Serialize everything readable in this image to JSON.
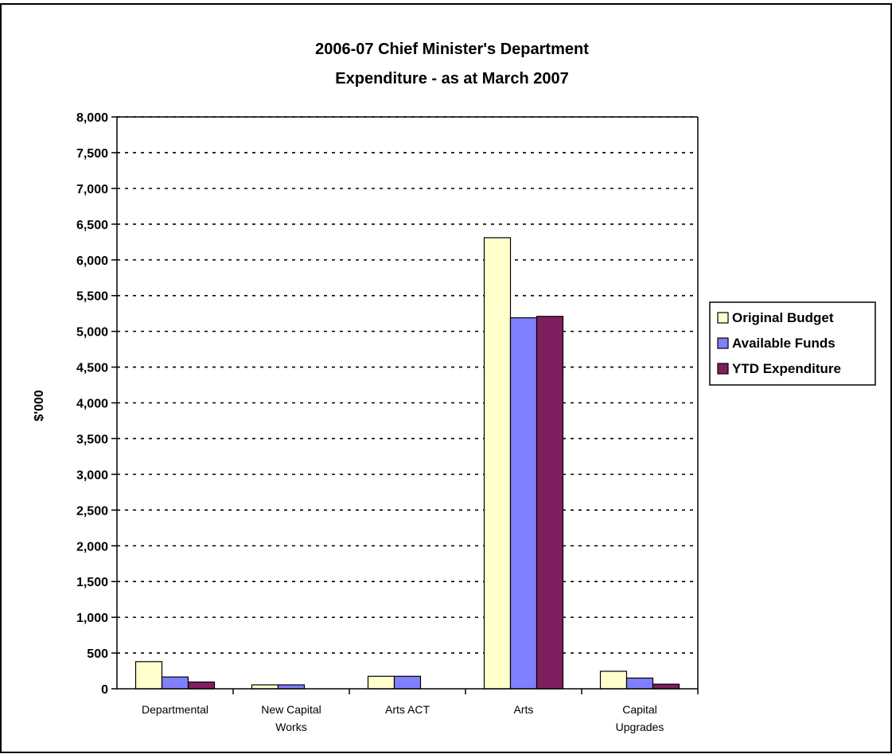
{
  "chart_data": {
    "type": "bar",
    "title": [
      "2006-07 Chief Minister's Department",
      "Expenditure - as at March 2007"
    ],
    "ylabel": "$'000",
    "xlabel": "",
    "ylim": [
      0,
      8000
    ],
    "ytick_step": 500,
    "yticks": [
      "0",
      "500",
      "1,000",
      "1,500",
      "2,000",
      "2,500",
      "3,000",
      "3,500",
      "4,000",
      "4,500",
      "5,000",
      "5,500",
      "6,000",
      "6,500",
      "7,000",
      "7,500",
      "8,000"
    ],
    "grid": true,
    "legend_position": "right",
    "categories": [
      [
        "Departmental"
      ],
      [
        "New Capital",
        "Works"
      ],
      [
        "Arts ACT"
      ],
      [
        "Arts"
      ],
      [
        "Capital",
        "Upgrades"
      ]
    ],
    "series": [
      {
        "name": "Original Budget",
        "color": "#FFFFCC",
        "values": [
          380,
          55,
          175,
          6310,
          245
        ]
      },
      {
        "name": "Available Funds",
        "color": "#8080FF",
        "values": [
          165,
          55,
          175,
          5190,
          150
        ]
      },
      {
        "name": "YTD Expenditure",
        "color": "#7F1F5F",
        "values": [
          95,
          0,
          0,
          5210,
          65
        ]
      }
    ]
  }
}
